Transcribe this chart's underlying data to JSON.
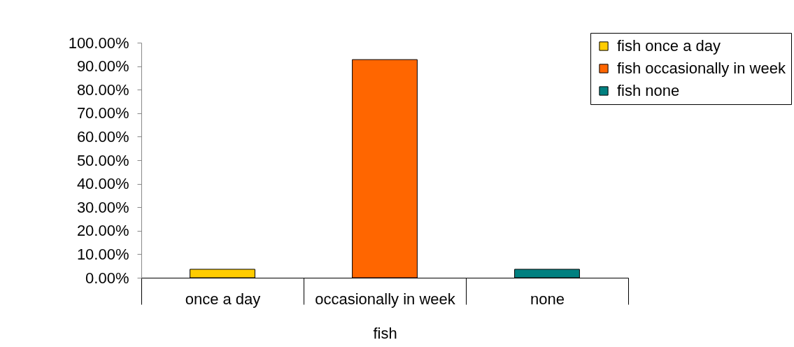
{
  "chart_data": {
    "type": "bar",
    "categories": [
      "once a day",
      "occasionally in week",
      "none"
    ],
    "xlabel": "fish",
    "series": [
      {
        "name": "fish once a day",
        "color": "#ffcc00",
        "values": [
          3.6,
          null,
          null
        ]
      },
      {
        "name": "fish occasionally in week",
        "color": "#ff6600",
        "values": [
          null,
          92.8,
          null
        ]
      },
      {
        "name": "fish none",
        "color": "#008080",
        "values": [
          null,
          null,
          3.6
        ]
      }
    ],
    "ylim": [
      0,
      100
    ],
    "yticks": [
      {
        "value": 0,
        "label": "0.00%"
      },
      {
        "value": 10,
        "label": "10.00%"
      },
      {
        "value": 20,
        "label": "20.00%"
      },
      {
        "value": 30,
        "label": "30.00%"
      },
      {
        "value": 40,
        "label": "40.00%"
      },
      {
        "value": 50,
        "label": "50.00%"
      },
      {
        "value": 60,
        "label": "60.00%"
      },
      {
        "value": 70,
        "label": "70.00%"
      },
      {
        "value": 80,
        "label": "80.00%"
      },
      {
        "value": 90,
        "label": "90.00%"
      },
      {
        "value": 100,
        "label": "100.00%"
      }
    ],
    "legend": "top right"
  }
}
